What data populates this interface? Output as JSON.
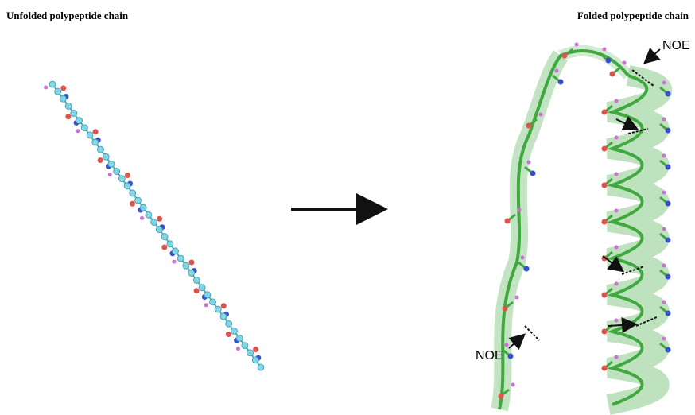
{
  "left_label": "Unfolded polypeptide chain",
  "right_label": "Folded polypeptide chain",
  "noe_labels": [
    "NOE",
    "NOE"
  ]
}
